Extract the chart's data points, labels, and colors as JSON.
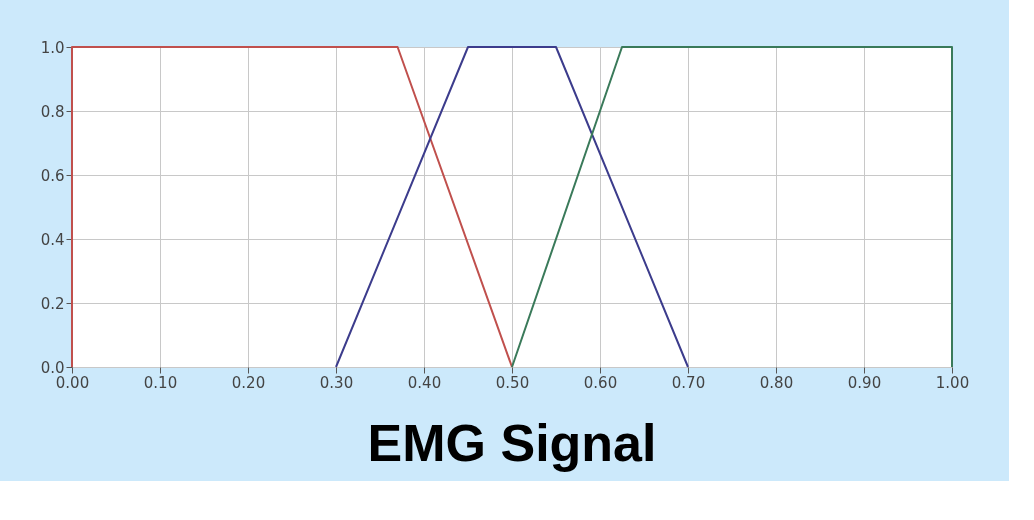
{
  "chart_data": {
    "type": "line",
    "title": "EMG Signal",
    "series": [
      {
        "color": "#c0504d",
        "x": [
          0,
          0,
          0.37,
          0.5
        ],
        "values": [
          0,
          1,
          1,
          0
        ]
      },
      {
        "color": "#3c3c8c",
        "x": [
          0.3,
          0.45,
          0.55,
          0.7
        ],
        "values": [
          0,
          1,
          1,
          0
        ]
      },
      {
        "color": "#3a7a5a",
        "x": [
          0.5,
          0.625,
          1,
          1
        ],
        "values": [
          0,
          1,
          1,
          0
        ]
      }
    ],
    "xlim": [
      0,
      1
    ],
    "xticks": [
      {
        "value": 0,
        "label": "0.00"
      },
      {
        "value": 0.1,
        "label": "0.10"
      },
      {
        "value": 0.2,
        "label": "0.20"
      },
      {
        "value": 0.3,
        "label": "0.30"
      },
      {
        "value": 0.4,
        "label": "0.40"
      },
      {
        "value": 0.5,
        "label": "0.50"
      },
      {
        "value": 0.6,
        "label": "0.60"
      },
      {
        "value": 0.7,
        "label": "0.70"
      },
      {
        "value": 0.8,
        "label": "0.80"
      },
      {
        "value": 0.9,
        "label": "0.90"
      },
      {
        "value": 1,
        "label": "1.00"
      }
    ],
    "ylim": [
      0,
      1
    ],
    "yticks": [
      {
        "value": 0,
        "label": "0.0"
      },
      {
        "value": 0.2,
        "label": "0.2"
      },
      {
        "value": 0.4,
        "label": "0.4"
      },
      {
        "value": 0.6,
        "label": "0.6"
      },
      {
        "value": 0.8,
        "label": "0.8"
      },
      {
        "value": 1,
        "label": "1.0"
      }
    ],
    "grid": true,
    "line_style": "solid",
    "marker": "none"
  }
}
